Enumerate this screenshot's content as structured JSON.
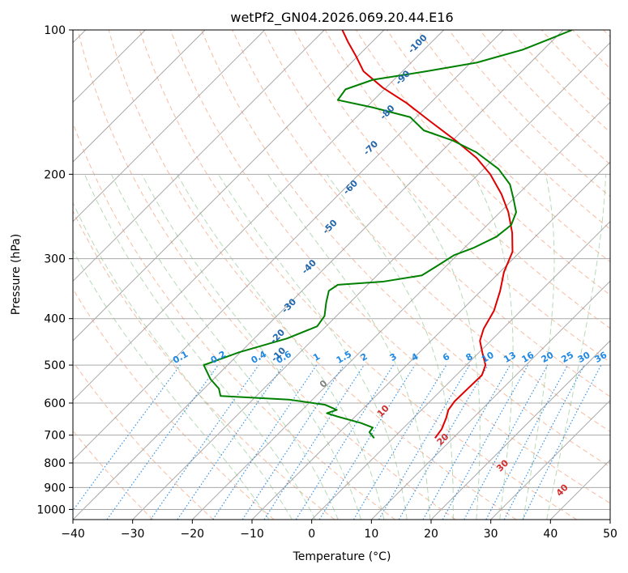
{
  "chart_data": {
    "type": "skew-t",
    "title": "wetPf2_GN04.2026.069.20.44.E16",
    "xlabel": "Temperature (°C)",
    "ylabel": "Pressure (hPa)",
    "xlim": [
      -40,
      50
    ],
    "ylim": [
      1050,
      100
    ],
    "x_ticks": [
      -40,
      -30,
      -20,
      -10,
      0,
      10,
      20,
      30,
      40,
      50
    ],
    "y_ticks": [
      100,
      200,
      300,
      400,
      500,
      600,
      700,
      800,
      900,
      1000
    ],
    "y_scale": "log",
    "grid": true,
    "colors": {
      "temperature": "#e00000",
      "dewpoint": "#008000",
      "dry_adiabat": "#f4a582",
      "moist_adiabat": "#92c592",
      "mixing_ratio": "#1e88e5",
      "frost_point": "#2166ac",
      "isotherm_labels": "#d32f2f",
      "zero_label": "#808080"
    },
    "series": [
      {
        "name": "temperature",
        "points": [
          {
            "p": 710,
            "t": 7.0
          },
          {
            "p": 680,
            "t": 6.6
          },
          {
            "p": 645,
            "t": 5.5
          },
          {
            "p": 620,
            "t": 4.5
          },
          {
            "p": 595,
            "t": 4.1
          },
          {
            "p": 555,
            "t": 4.2
          },
          {
            "p": 525,
            "t": 4.3
          },
          {
            "p": 500,
            "t": 3.2
          },
          {
            "p": 470,
            "t": 0.5
          },
          {
            "p": 445,
            "t": -1.8
          },
          {
            "p": 420,
            "t": -3.2
          },
          {
            "p": 385,
            "t": -4.5
          },
          {
            "p": 350,
            "t": -6.8
          },
          {
            "p": 320,
            "t": -9.3
          },
          {
            "p": 290,
            "t": -11.3
          },
          {
            "p": 265,
            "t": -14.5
          },
          {
            "p": 240,
            "t": -18.6
          },
          {
            "p": 220,
            "t": -22.8
          },
          {
            "p": 200,
            "t": -28.0
          },
          {
            "p": 185,
            "t": -33.0
          },
          {
            "p": 170,
            "t": -39.5
          },
          {
            "p": 155,
            "t": -47.0
          },
          {
            "p": 142,
            "t": -54.0
          },
          {
            "p": 132,
            "t": -60.5
          },
          {
            "p": 122,
            "t": -66.5
          },
          {
            "p": 113,
            "t": -70.5
          },
          {
            "p": 106,
            "t": -74.0
          },
          {
            "p": 100,
            "t": -77.0
          }
        ]
      },
      {
        "name": "dewpoint",
        "points": [
          {
            "p": 710,
            "t": -3.2
          },
          {
            "p": 690,
            "t": -5.0
          },
          {
            "p": 675,
            "t": -5.2
          },
          {
            "p": 660,
            "t": -8.0
          },
          {
            "p": 640,
            "t": -13.0
          },
          {
            "p": 630,
            "t": -15.3
          },
          {
            "p": 620,
            "t": -14.2
          },
          {
            "p": 605,
            "t": -17.0
          },
          {
            "p": 590,
            "t": -24.0
          },
          {
            "p": 580,
            "t": -36.0
          },
          {
            "p": 560,
            "t": -37.5
          },
          {
            "p": 535,
            "t": -40.5
          },
          {
            "p": 500,
            "t": -44.0
          },
          {
            "p": 470,
            "t": -40.2
          },
          {
            "p": 440,
            "t": -34.5
          },
          {
            "p": 415,
            "t": -31.5
          },
          {
            "p": 395,
            "t": -32.0
          },
          {
            "p": 370,
            "t": -34.0
          },
          {
            "p": 350,
            "t": -35.5
          },
          {
            "p": 340,
            "t": -35.0
          },
          {
            "p": 335,
            "t": -28.0
          },
          {
            "p": 325,
            "t": -22.5
          },
          {
            "p": 310,
            "t": -21.5
          },
          {
            "p": 295,
            "t": -20.5
          },
          {
            "p": 285,
            "t": -18.5
          },
          {
            "p": 270,
            "t": -16.5
          },
          {
            "p": 255,
            "t": -16.0
          },
          {
            "p": 240,
            "t": -17.3
          },
          {
            "p": 225,
            "t": -20.0
          },
          {
            "p": 210,
            "t": -23.0
          },
          {
            "p": 195,
            "t": -27.5
          },
          {
            "p": 180,
            "t": -34.0
          },
          {
            "p": 170,
            "t": -40.0
          },
          {
            "p": 162,
            "t": -46.5
          },
          {
            "p": 152,
            "t": -51.0
          },
          {
            "p": 145,
            "t": -59.0
          },
          {
            "p": 140,
            "t": -66.0
          },
          {
            "p": 133,
            "t": -66.5
          },
          {
            "p": 127,
            "t": -63.5
          },
          {
            "p": 122,
            "t": -56.0
          },
          {
            "p": 117,
            "t": -49.0
          },
          {
            "p": 110,
            "t": -43.5
          },
          {
            "p": 104,
            "t": -40.5
          },
          {
            "p": 100,
            "t": -38.5
          }
        ]
      }
    ],
    "mixing_ratio_labels": [
      "0.1",
      "0.2",
      "0.4",
      "0.6",
      "1",
      "1.5",
      "2",
      "3",
      "4",
      "6",
      "8",
      "10",
      "13",
      "16",
      "20",
      "25",
      "30",
      "36"
    ],
    "mixing_ratio_values": [
      0.1,
      0.2,
      0.4,
      0.6,
      1,
      1.5,
      2,
      3,
      4,
      6,
      8,
      10,
      13,
      16,
      20,
      25,
      30,
      36
    ],
    "frost_point_labels": [
      "-100",
      "-90",
      "-80",
      "-70",
      "-60",
      "-50",
      "-40",
      "-30",
      "-20",
      "-10"
    ],
    "frost_point_values": [
      -100,
      -90,
      -80,
      -70,
      -60,
      -50,
      -40,
      -30,
      -20,
      -10
    ],
    "isotherm_labels": [
      "0",
      "10",
      "20",
      "30",
      "40"
    ],
    "isotherm_values": [
      0,
      10,
      20,
      30,
      40
    ]
  }
}
